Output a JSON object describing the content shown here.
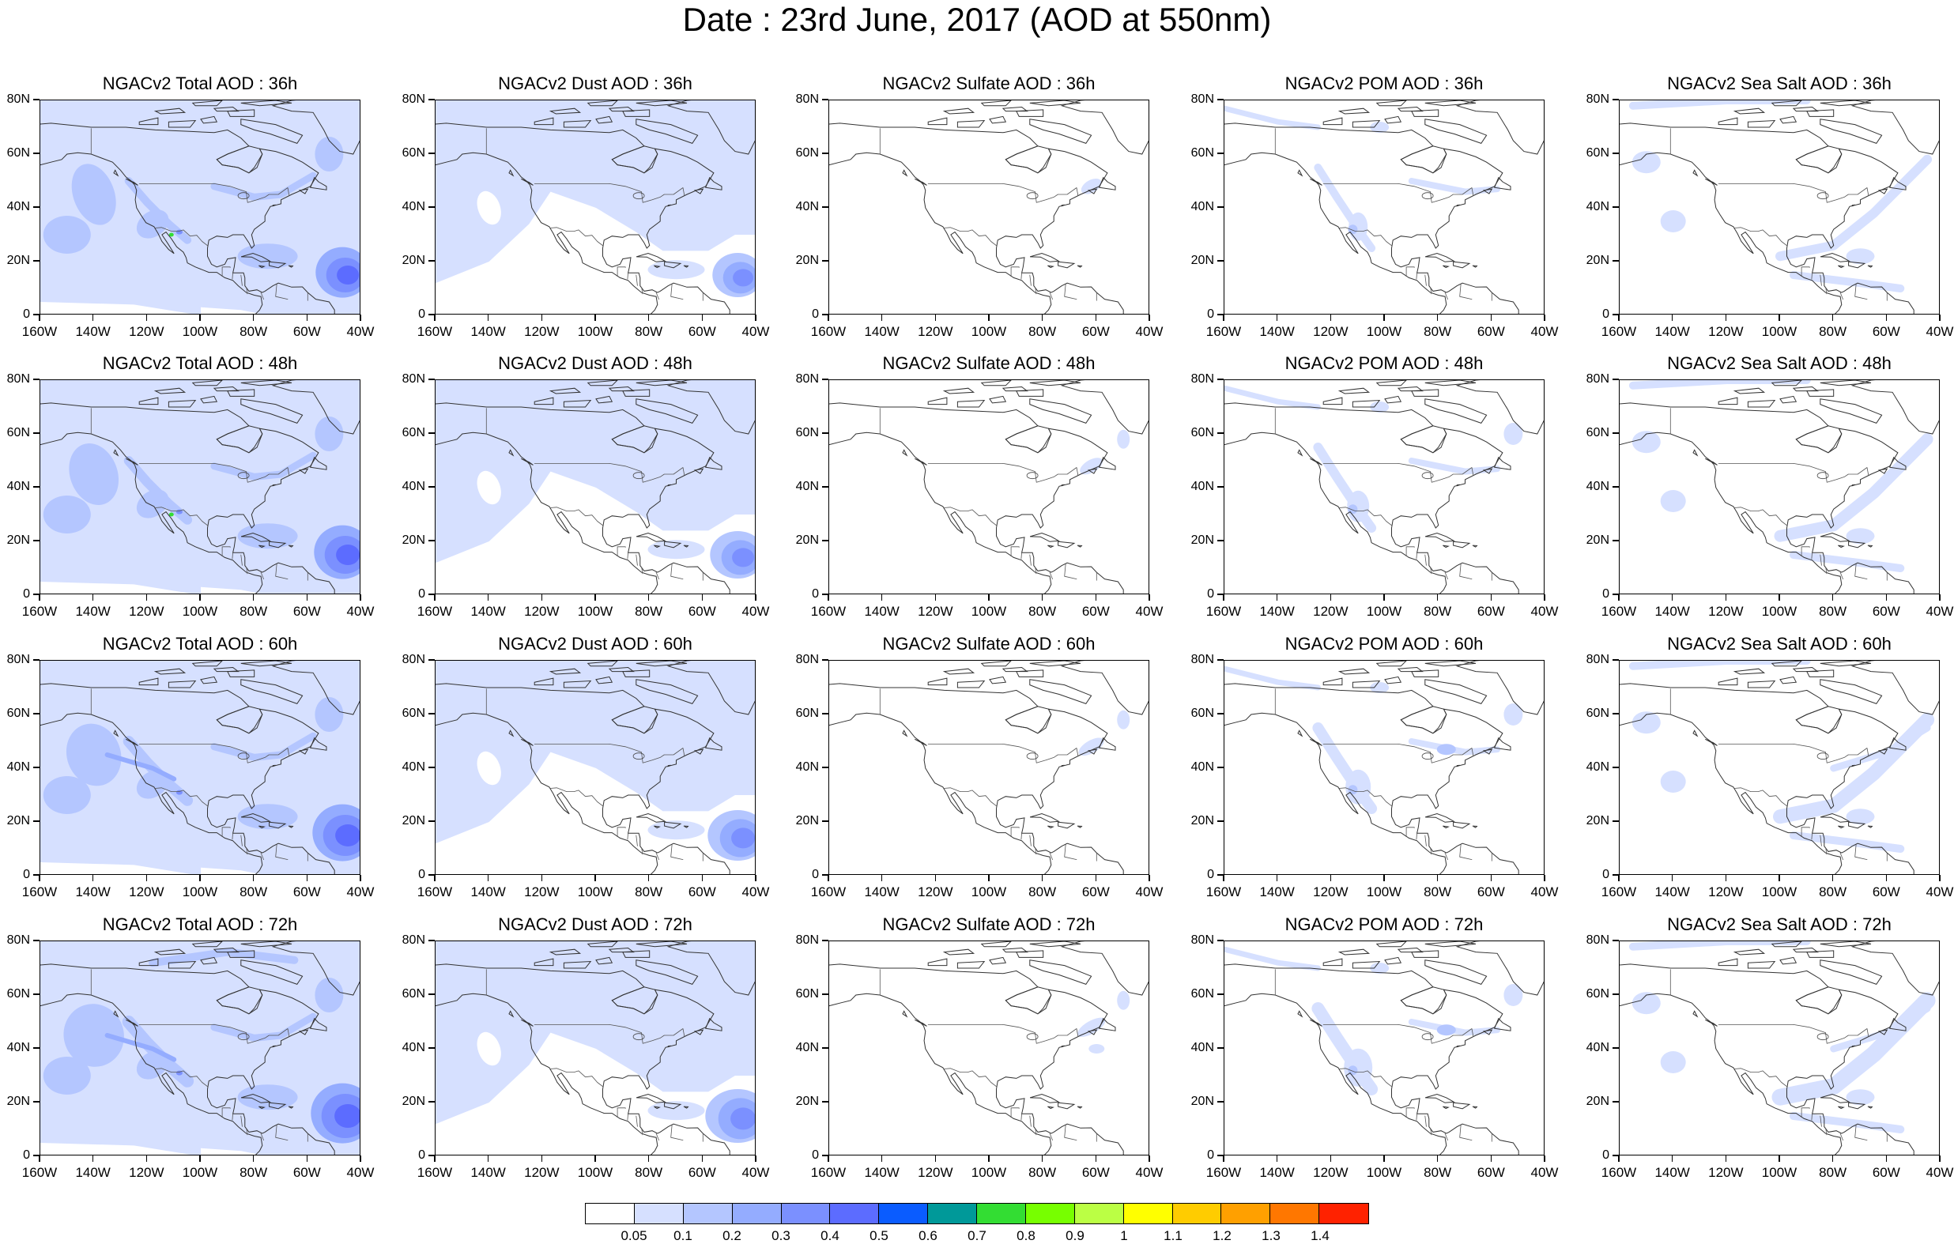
{
  "header": {
    "title": "Date : 23rd June, 2017 (AOD at 550nm)"
  },
  "axes": {
    "lat_labels": [
      "80N",
      "60N",
      "40N",
      "20N",
      "0"
    ],
    "lon_labels": [
      "160W",
      "140W",
      "120W",
      "100W",
      "80W",
      "60W",
      "40W"
    ]
  },
  "panels": [
    {
      "title": "NGACv2 Total AOD : 36h",
      "field": "total",
      "hour": "36h"
    },
    {
      "title": "NGACv2 Dust AOD : 36h",
      "field": "dust",
      "hour": "36h"
    },
    {
      "title": "NGACv2 Sulfate AOD : 36h",
      "field": "sulfate",
      "hour": "36h"
    },
    {
      "title": "NGACv2 POM AOD : 36h",
      "field": "pom",
      "hour": "36h"
    },
    {
      "title": "NGACv2 Sea Salt AOD : 36h",
      "field": "seasalt",
      "hour": "36h"
    },
    {
      "title": "NGACv2 Total AOD : 48h",
      "field": "total",
      "hour": "48h"
    },
    {
      "title": "NGACv2 Dust AOD : 48h",
      "field": "dust",
      "hour": "48h"
    },
    {
      "title": "NGACv2 Sulfate AOD : 48h",
      "field": "sulfate",
      "hour": "48h"
    },
    {
      "title": "NGACv2 POM AOD : 48h",
      "field": "pom",
      "hour": "48h"
    },
    {
      "title": "NGACv2 Sea Salt AOD : 48h",
      "field": "seasalt",
      "hour": "48h"
    },
    {
      "title": "NGACv2 Total AOD : 60h",
      "field": "total",
      "hour": "60h"
    },
    {
      "title": "NGACv2 Dust AOD : 60h",
      "field": "dust",
      "hour": "60h"
    },
    {
      "title": "NGACv2 Sulfate AOD : 60h",
      "field": "sulfate",
      "hour": "60h"
    },
    {
      "title": "NGACv2 POM AOD : 60h",
      "field": "pom",
      "hour": "60h"
    },
    {
      "title": "NGACv2 Sea Salt AOD : 60h",
      "field": "seasalt",
      "hour": "60h"
    },
    {
      "title": "NGACv2 Total AOD : 72h",
      "field": "total",
      "hour": "72h"
    },
    {
      "title": "NGACv2 Dust AOD : 72h",
      "field": "dust",
      "hour": "72h"
    },
    {
      "title": "NGACv2 Sulfate AOD : 72h",
      "field": "sulfate",
      "hour": "72h"
    },
    {
      "title": "NGACv2 POM AOD : 72h",
      "field": "pom",
      "hour": "72h"
    },
    {
      "title": "NGACv2 Sea Salt  AOD : 72h",
      "field": "seasalt",
      "hour": "72h"
    }
  ],
  "colorbar": {
    "labels": [
      "0.05",
      "0.1",
      "0.2",
      "0.3",
      "0.4",
      "0.5",
      "0.6",
      "0.7",
      "0.8",
      "0.9",
      "1",
      "1.1",
      "1.2",
      "1.3",
      "1.4"
    ],
    "colors": [
      "#ffffff",
      "#d6e0ff",
      "#b4c6ff",
      "#94acff",
      "#7b90ff",
      "#5c6cff",
      "#0a5cff",
      "#009999",
      "#33dd33",
      "#77ff00",
      "#bbff44",
      "#ffff00",
      "#ffcc00",
      "#ffa000",
      "#ff7700",
      "#ff2200"
    ]
  }
}
